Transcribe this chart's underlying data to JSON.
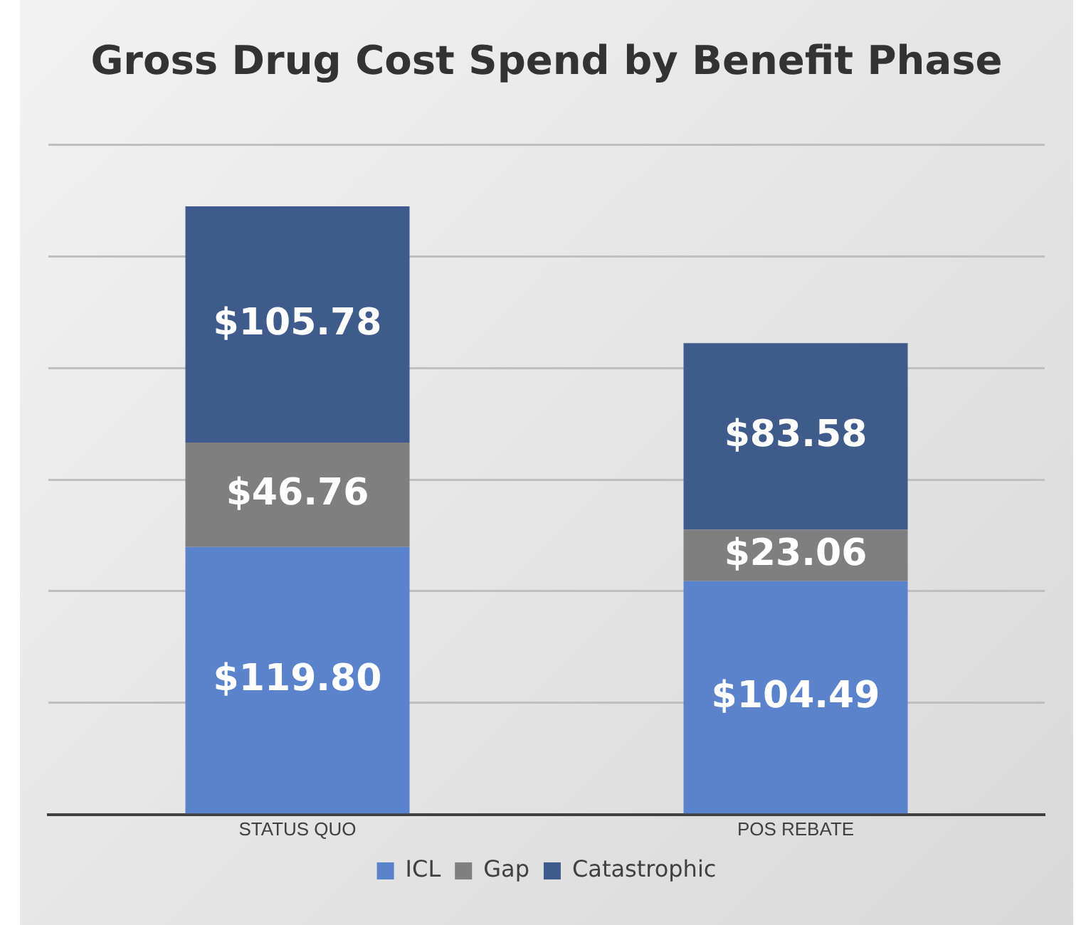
{
  "chart_data": {
    "type": "bar",
    "title": "Gross Drug Cost Spend by Benefit Phase",
    "categories": [
      "STATUS QUO",
      "POS REBATE"
    ],
    "stacked": true,
    "series": [
      {
        "name": "ICL",
        "color": "#5b83cc",
        "values": [
          119.8,
          104.49
        ],
        "value_labels": [
          "$119.80",
          "$104.49"
        ]
      },
      {
        "name": "Gap",
        "color": "#7f7f7f",
        "values": [
          46.76,
          23.06
        ],
        "value_labels": [
          "$46.76",
          "$23.06"
        ]
      },
      {
        "name": "Catastrophic",
        "color": "#3f5b8c",
        "values": [
          105.78,
          83.58
        ],
        "value_labels": [
          "$105.78",
          "$83.58"
        ]
      }
    ],
    "tick_labels": "x",
    "grid": "y",
    "legend": "bottom"
  }
}
